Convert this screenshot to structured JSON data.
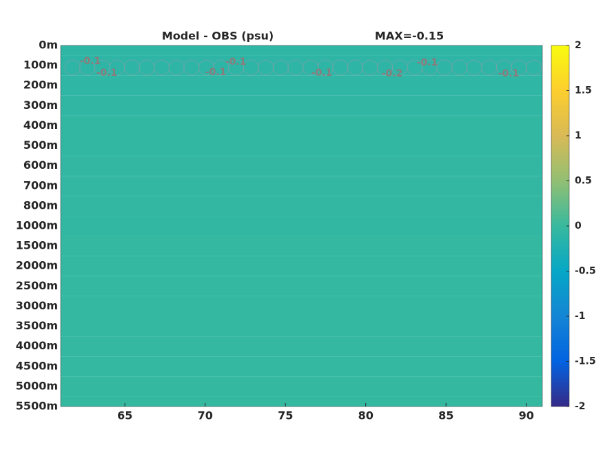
{
  "chart_data": {
    "type": "heatmap",
    "title": "Model - OBS (psu)",
    "annotation": "MAX=-0.15",
    "y_categories": [
      "0m",
      "100m",
      "200m",
      "300m",
      "400m",
      "500m",
      "600m",
      "700m",
      "800m",
      "1000m",
      "1500m",
      "2000m",
      "2500m",
      "3000m",
      "3500m",
      "4000m",
      "4500m",
      "5000m",
      "5500m"
    ],
    "values": [
      -0.08,
      -0.1,
      -0.08,
      -0.07,
      -0.06,
      -0.06,
      -0.05,
      -0.05,
      -0.05,
      -0.06,
      -0.04,
      -0.04,
      -0.04,
      -0.04,
      -0.04,
      -0.04,
      -0.04,
      -0.03,
      -0.03
    ],
    "xlim": [
      61,
      91
    ],
    "xticks": [
      65,
      70,
      75,
      80,
      85,
      90
    ],
    "colormap": "parula",
    "clim": [
      -2,
      2
    ],
    "cticks": [
      -2,
      -1.5,
      -1,
      -0.5,
      0,
      0.5,
      1,
      1.5,
      2
    ],
    "contour_labels": [
      -0.1,
      -0.1,
      -0.1,
      -0.1,
      -0.1,
      -0.2,
      -0.1,
      -0.1
    ]
  }
}
